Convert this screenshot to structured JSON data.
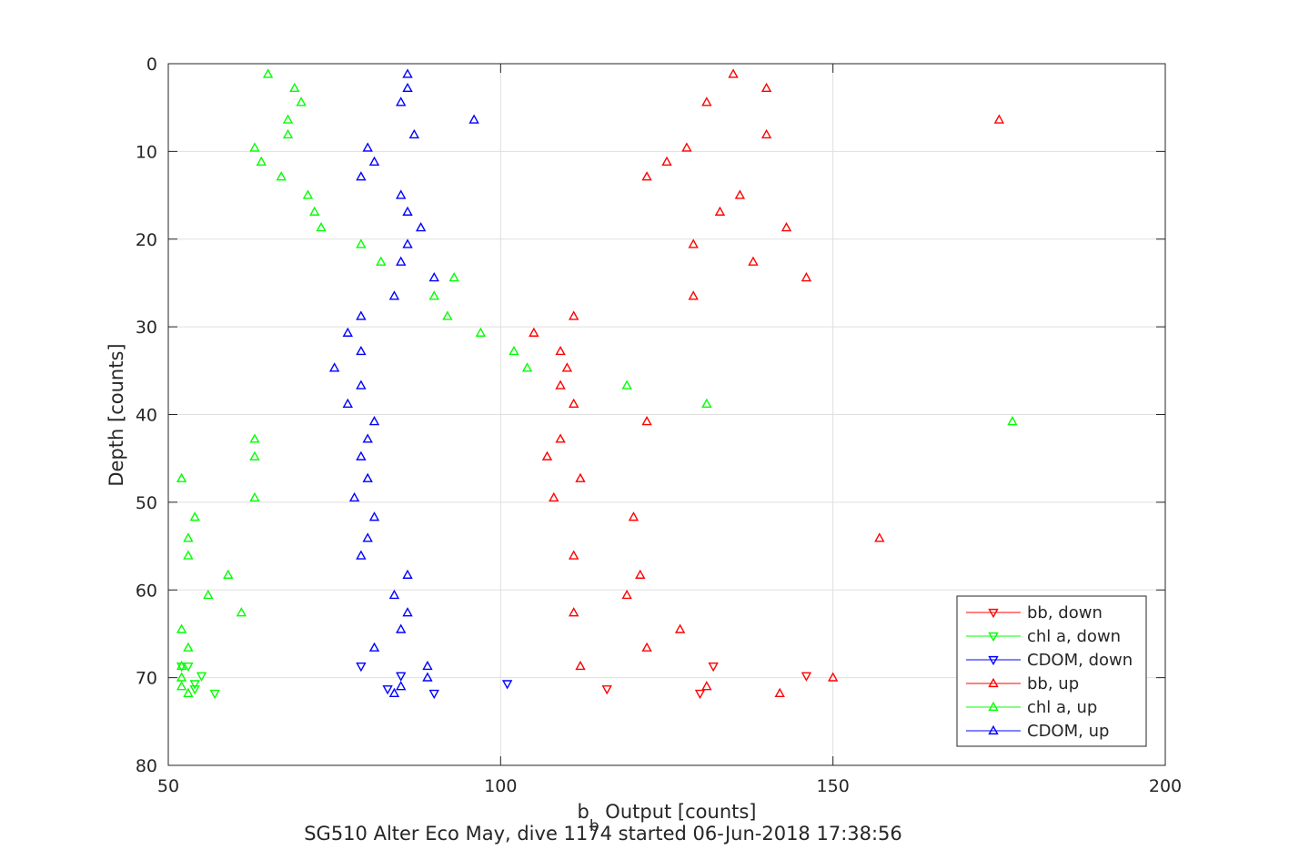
{
  "chart_data": {
    "type": "scatter",
    "title": "SG510 Alter Eco May, dive 1174 started 06-Jun-2018 17:38:56",
    "xlabel_main": "b",
    "xlabel_sub": "b",
    "xlabel_rest": " Output [counts]",
    "ylabel": "Depth [counts]",
    "xlim": [
      50,
      200
    ],
    "ylim": [
      0,
      80
    ],
    "y_reversed": true,
    "grid": true,
    "xticks": [
      "50",
      "100",
      "150",
      "200"
    ],
    "yticks": [
      "0",
      "10",
      "20",
      "30",
      "40",
      "50",
      "60",
      "70",
      "80"
    ],
    "legend_position": "bottom-right",
    "series": [
      {
        "name": "bb, down",
        "color": "#ff0000",
        "marker": "triangle-down",
        "points": [
          [
            116,
            71.3
          ],
          [
            130,
            71.8
          ],
          [
            132,
            68.7
          ],
          [
            146,
            69.8
          ]
        ]
      },
      {
        "name": "chl a, down",
        "color": "#00ff00",
        "marker": "triangle-down",
        "points": [
          [
            52,
            68.7
          ],
          [
            53,
            68.7
          ],
          [
            55,
            69.8
          ],
          [
            54,
            70.7
          ],
          [
            54,
            71.3
          ],
          [
            57,
            71.8
          ]
        ]
      },
      {
        "name": "CDOM, down",
        "color": "#0000ff",
        "marker": "triangle-down",
        "points": [
          [
            79,
            68.7
          ],
          [
            85,
            69.8
          ],
          [
            101,
            70.7
          ],
          [
            83,
            71.3
          ],
          [
            90,
            71.8
          ]
        ]
      },
      {
        "name": "bb, up",
        "color": "#ff0000",
        "marker": "triangle-up",
        "points": [
          [
            135,
            1.2
          ],
          [
            140,
            2.8
          ],
          [
            131,
            4.4
          ],
          [
            175,
            6.4
          ],
          [
            140,
            8.1
          ],
          [
            128,
            9.6
          ],
          [
            125,
            11.2
          ],
          [
            122,
            12.9
          ],
          [
            136,
            15.0
          ],
          [
            133,
            16.9
          ],
          [
            143,
            18.7
          ],
          [
            129,
            20.6
          ],
          [
            138,
            22.6
          ],
          [
            146,
            24.4
          ],
          [
            129,
            26.5
          ],
          [
            111,
            28.8
          ],
          [
            105,
            30.7
          ],
          [
            109,
            32.8
          ],
          [
            110,
            34.7
          ],
          [
            109,
            36.7
          ],
          [
            111,
            38.8
          ],
          [
            122,
            40.8
          ],
          [
            109,
            42.8
          ],
          [
            107,
            44.8
          ],
          [
            112,
            47.3
          ],
          [
            108,
            49.5
          ],
          [
            120,
            51.7
          ],
          [
            157,
            54.1
          ],
          [
            111,
            56.1
          ],
          [
            121,
            58.3
          ],
          [
            119,
            60.6
          ],
          [
            111,
            62.6
          ],
          [
            127,
            64.5
          ],
          [
            122,
            66.6
          ],
          [
            112,
            68.7
          ],
          [
            150,
            70.0
          ],
          [
            131,
            71.0
          ],
          [
            142,
            71.8
          ]
        ]
      },
      {
        "name": "chl a, up",
        "color": "#00ff00",
        "marker": "triangle-up",
        "points": [
          [
            65,
            1.2
          ],
          [
            69,
            2.8
          ],
          [
            70,
            4.4
          ],
          [
            68,
            6.4
          ],
          [
            68,
            8.1
          ],
          [
            63,
            9.6
          ],
          [
            64,
            11.2
          ],
          [
            67,
            12.9
          ],
          [
            71,
            15.0
          ],
          [
            72,
            16.9
          ],
          [
            73,
            18.7
          ],
          [
            79,
            20.6
          ],
          [
            82,
            22.6
          ],
          [
            93,
            24.4
          ],
          [
            90,
            26.5
          ],
          [
            92,
            28.8
          ],
          [
            97,
            30.7
          ],
          [
            102,
            32.8
          ],
          [
            104,
            34.7
          ],
          [
            119,
            36.7
          ],
          [
            131,
            38.8
          ],
          [
            177,
            40.8
          ],
          [
            63,
            42.8
          ],
          [
            63,
            44.8
          ],
          [
            52,
            47.3
          ],
          [
            63,
            49.5
          ],
          [
            54,
            51.7
          ],
          [
            53,
            54.1
          ],
          [
            53,
            56.1
          ],
          [
            59,
            58.3
          ],
          [
            56,
            60.6
          ],
          [
            61,
            62.6
          ],
          [
            52,
            64.5
          ],
          [
            53,
            66.6
          ],
          [
            52,
            68.7
          ],
          [
            52,
            70.0
          ],
          [
            52,
            71.0
          ],
          [
            53,
            71.8
          ]
        ]
      },
      {
        "name": "CDOM, up",
        "color": "#0000ff",
        "marker": "triangle-up",
        "points": [
          [
            86,
            1.2
          ],
          [
            86,
            2.8
          ],
          [
            85,
            4.4
          ],
          [
            96,
            6.4
          ],
          [
            87,
            8.1
          ],
          [
            80,
            9.6
          ],
          [
            81,
            11.2
          ],
          [
            79,
            12.9
          ],
          [
            85,
            15.0
          ],
          [
            86,
            16.9
          ],
          [
            88,
            18.7
          ],
          [
            86,
            20.6
          ],
          [
            85,
            22.6
          ],
          [
            90,
            24.4
          ],
          [
            84,
            26.5
          ],
          [
            79,
            28.8
          ],
          [
            77,
            30.7
          ],
          [
            79,
            32.8
          ],
          [
            75,
            34.7
          ],
          [
            79,
            36.7
          ],
          [
            77,
            38.8
          ],
          [
            81,
            40.8
          ],
          [
            80,
            42.8
          ],
          [
            79,
            44.8
          ],
          [
            80,
            47.3
          ],
          [
            78,
            49.5
          ],
          [
            81,
            51.7
          ],
          [
            80,
            54.1
          ],
          [
            79,
            56.1
          ],
          [
            86,
            58.3
          ],
          [
            84,
            60.6
          ],
          [
            86,
            62.6
          ],
          [
            85,
            64.5
          ],
          [
            81,
            66.6
          ],
          [
            89,
            68.7
          ],
          [
            89,
            70.0
          ],
          [
            85,
            71.0
          ],
          [
            84,
            71.8
          ]
        ]
      }
    ]
  }
}
